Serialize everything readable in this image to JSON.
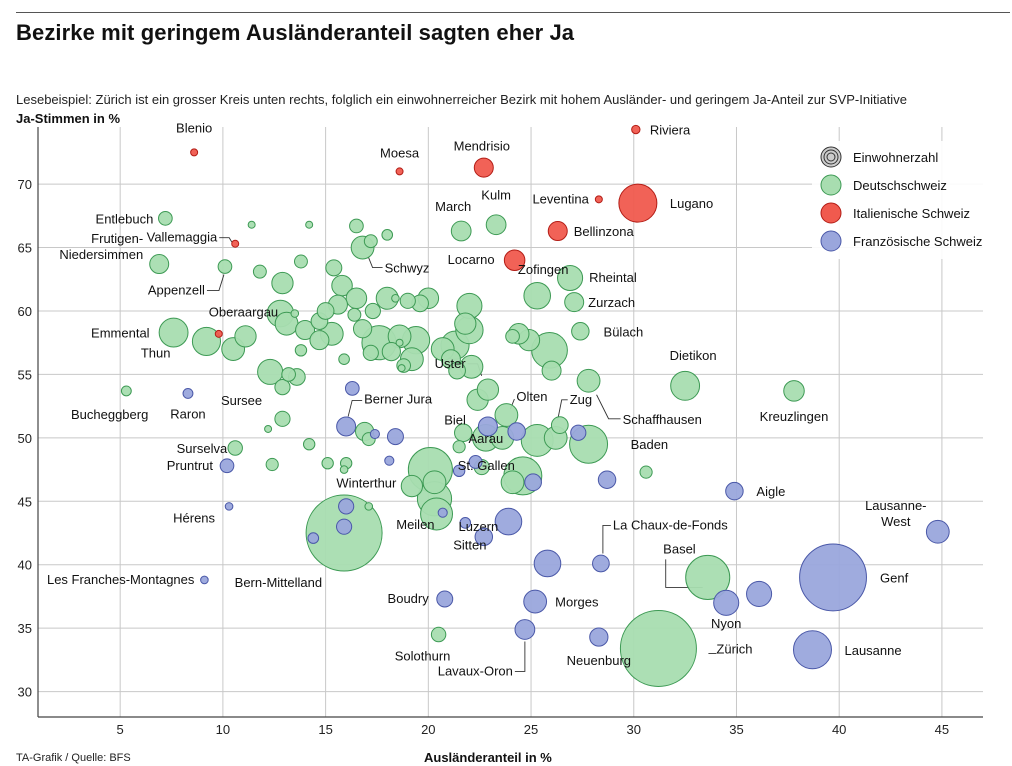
{
  "chart_data": {
    "type": "scatter",
    "title": "Bezirke mit geringem Ausländeranteil sagten eher Ja",
    "subtitle": "Lesebeispiel: Zürich ist ein grosser Kreis unten rechts, folglich ein einwohnerreicher Bezirk mit hohem Ausländer- und geringem Ja-Anteil zur SVP-Initiative",
    "ylabel": "Ja-Stimmen in %",
    "xlabel": "Ausländeranteil in %",
    "source": "TA-Grafik / Quelle: BFS",
    "xlim": [
      1,
      47
    ],
    "ylim": [
      28,
      74.5
    ],
    "xticks": [
      "5",
      "10",
      "15",
      "20",
      "25",
      "30",
      "35",
      "40",
      "45"
    ],
    "yticks": [
      "30",
      "35",
      "40",
      "45",
      "50",
      "55",
      "60",
      "65",
      "70"
    ],
    "colors": {
      "deutsch": "#a8ddb0",
      "deutsch_stroke": "#3d9a54",
      "italienisch": "#f05a4e",
      "italienisch_stroke": "#b31d16",
      "franz": "#9aa6dc",
      "franz_stroke": "#4a58a8",
      "grid": "#c8c8c8",
      "axis": "#444444"
    },
    "legend": {
      "size_label": "Einwohnerzahl",
      "entries": [
        {
          "name": "Deutschschweiz",
          "group": "deutsch"
        },
        {
          "name": "Italienische Schweiz",
          "group": "italienisch"
        },
        {
          "name": "Französische Schweiz",
          "group": "franz"
        }
      ]
    },
    "points": [
      {
        "x": 31.2,
        "y": 33.4,
        "s": 1.0,
        "g": "deutsch",
        "label": "Zürich"
      },
      {
        "x": 15.9,
        "y": 42.5,
        "s": 1.0,
        "g": "deutsch",
        "label": "Bern-Mittelland"
      },
      {
        "x": 33.6,
        "y": 39.0,
        "s": 0.58,
        "g": "deutsch",
        "label": "Basel"
      },
      {
        "x": 20.4,
        "y": 44.0,
        "s": 0.42,
        "g": "deutsch",
        "label": "Meilen"
      },
      {
        "x": 20.1,
        "y": 47.5,
        "s": 0.58,
        "g": "deutsch",
        "label": "Winterthur"
      },
      {
        "x": 24.6,
        "y": 47.0,
        "s": 0.5,
        "g": "deutsch",
        "label": "St. Gallen"
      },
      {
        "x": 20.3,
        "y": 45.2,
        "s": 0.45,
        "g": "deutsch",
        "label": "Luzern"
      },
      {
        "x": 22.8,
        "y": 50.0,
        "s": 0.35,
        "g": "deutsch",
        "label": "Aarau"
      },
      {
        "x": 27.8,
        "y": 49.5,
        "s": 0.5,
        "g": "deutsch",
        "label": "Baden"
      },
      {
        "x": 25.3,
        "y": 49.8,
        "s": 0.42,
        "g": "deutsch"
      },
      {
        "x": 25.9,
        "y": 56.9,
        "s": 0.47,
        "g": "deutsch",
        "label": "Bülach"
      },
      {
        "x": 32.5,
        "y": 54.1,
        "s": 0.38,
        "g": "deutsch",
        "label": "Dietikon"
      },
      {
        "x": 7.6,
        "y": 58.3,
        "s": 0.38,
        "g": "deutsch",
        "label": "Emmental"
      },
      {
        "x": 9.2,
        "y": 57.6,
        "s": 0.37,
        "g": "deutsch",
        "label": "Thun"
      },
      {
        "x": 17.6,
        "y": 57.5,
        "s": 0.45,
        "g": "deutsch"
      },
      {
        "x": 21.3,
        "y": 57.3,
        "s": 0.37,
        "g": "deutsch"
      },
      {
        "x": 22.0,
        "y": 58.5,
        "s": 0.36,
        "g": "deutsch"
      },
      {
        "x": 12.8,
        "y": 59.8,
        "s": 0.35,
        "g": "deutsch"
      },
      {
        "x": 12.3,
        "y": 55.2,
        "s": 0.33,
        "g": "deutsch",
        "label": "Sursee"
      },
      {
        "x": 25.3,
        "y": 61.2,
        "s": 0.35,
        "g": "deutsch",
        "label": "Zofingen"
      },
      {
        "x": 26.9,
        "y": 62.6,
        "s": 0.33,
        "g": "deutsch",
        "label": "Rheintal"
      },
      {
        "x": 22.0,
        "y": 60.4,
        "s": 0.33,
        "g": "deutsch"
      },
      {
        "x": 27.8,
        "y": 54.5,
        "s": 0.3,
        "g": "deutsch",
        "label": "Schaffhausen"
      },
      {
        "x": 37.8,
        "y": 53.7,
        "s": 0.27,
        "g": "deutsch",
        "label": "Kreuzlingen"
      },
      {
        "x": 23.8,
        "y": 51.8,
        "s": 0.3,
        "g": "deutsch",
        "label": "Olten"
      },
      {
        "x": 22.4,
        "y": 53.0,
        "s": 0.28,
        "g": "deutsch",
        "label": "Uster"
      },
      {
        "x": 22.9,
        "y": 53.8,
        "s": 0.28,
        "g": "deutsch"
      },
      {
        "x": 26.2,
        "y": 50.0,
        "s": 0.3,
        "g": "deutsch",
        "label": "Zug"
      },
      {
        "x": 19.2,
        "y": 46.2,
        "s": 0.28,
        "g": "deutsch"
      },
      {
        "x": 16.8,
        "y": 65.0,
        "s": 0.3,
        "g": "deutsch",
        "label": "Schwyz"
      },
      {
        "x": 21.6,
        "y": 66.3,
        "s": 0.26,
        "g": "deutsch",
        "label": "March"
      },
      {
        "x": 23.3,
        "y": 66.8,
        "s": 0.26,
        "g": "deutsch",
        "label": "Kulm"
      },
      {
        "x": 27.1,
        "y": 60.7,
        "s": 0.25,
        "g": "deutsch",
        "label": "Zurzach"
      },
      {
        "x": 11.1,
        "y": 58.0,
        "s": 0.28,
        "g": "deutsch",
        "label": "Oberaargau"
      },
      {
        "x": 10.5,
        "y": 57.0,
        "s": 0.3,
        "g": "deutsch"
      },
      {
        "x": 6.9,
        "y": 63.7,
        "s": 0.25,
        "g": "deutsch",
        "label": "Frutigen-\nNiedersimmen"
      },
      {
        "x": 10.1,
        "y": 63.5,
        "s": 0.18,
        "g": "deutsch",
        "label": "Appenzell"
      },
      {
        "x": 7.2,
        "y": 67.3,
        "s": 0.18,
        "g": "deutsch",
        "label": "Entlebuch"
      },
      {
        "x": 5.3,
        "y": 53.7,
        "s": 0.13,
        "g": "deutsch",
        "label": "Bucheggberg"
      },
      {
        "x": 10.6,
        "y": 49.2,
        "s": 0.19,
        "g": "deutsch",
        "label": "Surselva"
      },
      {
        "x": 20.5,
        "y": 34.5,
        "s": 0.19,
        "g": "deutsch",
        "label": "Solothurn"
      },
      {
        "x": 13.1,
        "y": 59.0,
        "s": 0.3,
        "g": "deutsch"
      },
      {
        "x": 14.0,
        "y": 58.5,
        "s": 0.25,
        "g": "deutsch"
      },
      {
        "x": 14.7,
        "y": 59.2,
        "s": 0.22,
        "g": "deutsch"
      },
      {
        "x": 15.0,
        "y": 60.0,
        "s": 0.22,
        "g": "deutsch"
      },
      {
        "x": 15.6,
        "y": 60.5,
        "s": 0.25,
        "g": "deutsch"
      },
      {
        "x": 15.8,
        "y": 62.0,
        "s": 0.27,
        "g": "deutsch"
      },
      {
        "x": 16.5,
        "y": 61.0,
        "s": 0.27,
        "g": "deutsch"
      },
      {
        "x": 17.3,
        "y": 60.0,
        "s": 0.2,
        "g": "deutsch"
      },
      {
        "x": 18.0,
        "y": 61.0,
        "s": 0.29,
        "g": "deutsch"
      },
      {
        "x": 18.6,
        "y": 58.0,
        "s": 0.3,
        "g": "deutsch"
      },
      {
        "x": 19.4,
        "y": 57.7,
        "s": 0.36,
        "g": "deutsch"
      },
      {
        "x": 19.2,
        "y": 56.2,
        "s": 0.3,
        "g": "deutsch"
      },
      {
        "x": 18.2,
        "y": 56.8,
        "s": 0.24,
        "g": "deutsch"
      },
      {
        "x": 17.2,
        "y": 56.7,
        "s": 0.2,
        "g": "deutsch"
      },
      {
        "x": 16.8,
        "y": 58.6,
        "s": 0.24,
        "g": "deutsch"
      },
      {
        "x": 15.3,
        "y": 58.2,
        "s": 0.3,
        "g": "deutsch"
      },
      {
        "x": 14.7,
        "y": 57.7,
        "s": 0.25,
        "g": "deutsch"
      },
      {
        "x": 16.4,
        "y": 59.7,
        "s": 0.17,
        "g": "deutsch"
      },
      {
        "x": 13.5,
        "y": 59.8,
        "s": 0.1,
        "g": "deutsch"
      },
      {
        "x": 12.9,
        "y": 62.2,
        "s": 0.28,
        "g": "deutsch"
      },
      {
        "x": 13.8,
        "y": 63.9,
        "s": 0.17,
        "g": "deutsch"
      },
      {
        "x": 11.8,
        "y": 63.1,
        "s": 0.17,
        "g": "deutsch"
      },
      {
        "x": 15.4,
        "y": 63.4,
        "s": 0.21,
        "g": "deutsch"
      },
      {
        "x": 17.2,
        "y": 65.5,
        "s": 0.17,
        "g": "deutsch"
      },
      {
        "x": 16.5,
        "y": 66.7,
        "s": 0.18,
        "g": "deutsch"
      },
      {
        "x": 18.0,
        "y": 66.0,
        "s": 0.14,
        "g": "deutsch"
      },
      {
        "x": 14.2,
        "y": 66.8,
        "s": 0.08,
        "g": "deutsch"
      },
      {
        "x": 11.4,
        "y": 66.8,
        "s": 0.06,
        "g": "deutsch"
      },
      {
        "x": 18.4,
        "y": 61.0,
        "s": 0.1,
        "g": "deutsch"
      },
      {
        "x": 19.0,
        "y": 60.8,
        "s": 0.2,
        "g": "deutsch"
      },
      {
        "x": 19.6,
        "y": 60.6,
        "s": 0.22,
        "g": "deutsch"
      },
      {
        "x": 20.0,
        "y": 61.0,
        "s": 0.27,
        "g": "deutsch"
      },
      {
        "x": 21.8,
        "y": 59.0,
        "s": 0.28,
        "g": "deutsch"
      },
      {
        "x": 20.7,
        "y": 57.0,
        "s": 0.3,
        "g": "deutsch"
      },
      {
        "x": 21.1,
        "y": 56.2,
        "s": 0.25,
        "g": "deutsch"
      },
      {
        "x": 22.1,
        "y": 55.6,
        "s": 0.3,
        "g": "deutsch"
      },
      {
        "x": 21.4,
        "y": 55.3,
        "s": 0.22,
        "g": "deutsch"
      },
      {
        "x": 24.1,
        "y": 58.0,
        "s": 0.18,
        "g": "deutsch"
      },
      {
        "x": 24.4,
        "y": 58.2,
        "s": 0.27,
        "g": "deutsch"
      },
      {
        "x": 24.9,
        "y": 57.7,
        "s": 0.28,
        "g": "deutsch"
      },
      {
        "x": 26.0,
        "y": 55.3,
        "s": 0.25,
        "g": "deutsch"
      },
      {
        "x": 27.4,
        "y": 58.4,
        "s": 0.23,
        "g": "deutsch"
      },
      {
        "x": 18.8,
        "y": 55.7,
        "s": 0.18,
        "g": "deutsch"
      },
      {
        "x": 13.2,
        "y": 55.0,
        "s": 0.18,
        "g": "deutsch"
      },
      {
        "x": 12.9,
        "y": 54.0,
        "s": 0.2,
        "g": "deutsch"
      },
      {
        "x": 13.6,
        "y": 54.8,
        "s": 0.22,
        "g": "deutsch"
      },
      {
        "x": 13.8,
        "y": 56.9,
        "s": 0.15,
        "g": "deutsch"
      },
      {
        "x": 15.9,
        "y": 56.2,
        "s": 0.14,
        "g": "deutsch"
      },
      {
        "x": 16.9,
        "y": 50.5,
        "s": 0.24,
        "g": "deutsch"
      },
      {
        "x": 17.1,
        "y": 49.9,
        "s": 0.17,
        "g": "deutsch"
      },
      {
        "x": 12.9,
        "y": 51.5,
        "s": 0.2,
        "g": "deutsch"
      },
      {
        "x": 14.2,
        "y": 49.5,
        "s": 0.15,
        "g": "deutsch"
      },
      {
        "x": 12.4,
        "y": 47.9,
        "s": 0.16,
        "g": "deutsch"
      },
      {
        "x": 12.2,
        "y": 50.7,
        "s": 0.08,
        "g": "deutsch"
      },
      {
        "x": 15.1,
        "y": 48.0,
        "s": 0.15,
        "g": "deutsch"
      },
      {
        "x": 16.0,
        "y": 48.0,
        "s": 0.15,
        "g": "deutsch"
      },
      {
        "x": 15.9,
        "y": 47.5,
        "s": 0.1,
        "g": "deutsch"
      },
      {
        "x": 17.1,
        "y": 44.6,
        "s": 0.1,
        "g": "deutsch"
      },
      {
        "x": 30.6,
        "y": 47.3,
        "s": 0.16,
        "g": "deutsch"
      },
      {
        "x": 21.5,
        "y": 49.3,
        "s": 0.16,
        "g": "deutsch"
      },
      {
        "x": 21.7,
        "y": 50.4,
        "s": 0.23,
        "g": "deutsch"
      },
      {
        "x": 23.6,
        "y": 50.0,
        "s": 0.3,
        "g": "deutsch"
      },
      {
        "x": 20.3,
        "y": 46.5,
        "s": 0.3,
        "g": "deutsch"
      },
      {
        "x": 22.6,
        "y": 47.7,
        "s": 0.2,
        "g": "deutsch"
      },
      {
        "x": 24.1,
        "y": 46.5,
        "s": 0.3,
        "g": "deutsch"
      },
      {
        "x": 26.4,
        "y": 51.0,
        "s": 0.22,
        "g": "deutsch"
      },
      {
        "x": 18.7,
        "y": 55.5,
        "s": 0.08,
        "g": "deutsch"
      },
      {
        "x": 18.6,
        "y": 57.5,
        "s": 0.05,
        "g": "deutsch"
      },
      {
        "x": 30.2,
        "y": 68.5,
        "s": 0.5,
        "g": "italienisch",
        "label": "Lugano"
      },
      {
        "x": 22.7,
        "y": 71.3,
        "s": 0.25,
        "g": "italienisch",
        "label": "Mendrisio"
      },
      {
        "x": 26.3,
        "y": 66.3,
        "s": 0.25,
        "g": "italienisch",
        "label": "Bellinzona"
      },
      {
        "x": 24.2,
        "y": 64.0,
        "s": 0.27,
        "g": "italienisch",
        "label": "Locarno"
      },
      {
        "x": 30.1,
        "y": 74.3,
        "s": 0.11,
        "g": "italienisch",
        "label": "Riviera"
      },
      {
        "x": 28.3,
        "y": 68.8,
        "s": 0.09,
        "g": "italienisch",
        "label": "Leventina"
      },
      {
        "x": 18.6,
        "y": 71.0,
        "s": 0.08,
        "g": "italienisch",
        "label": "Moesa"
      },
      {
        "x": 8.6,
        "y": 72.5,
        "s": 0.07,
        "g": "italienisch",
        "label": "Blenio"
      },
      {
        "x": 10.6,
        "y": 65.3,
        "s": 0.08,
        "g": "italienisch",
        "label": "Vallemaggia"
      },
      {
        "x": 9.8,
        "y": 58.2,
        "s": 0.07,
        "g": "italienisch"
      },
      {
        "x": 39.7,
        "y": 39.0,
        "s": 0.88,
        "g": "franz",
        "label": "Genf"
      },
      {
        "x": 38.7,
        "y": 33.3,
        "s": 0.5,
        "g": "franz",
        "label": "Lausanne"
      },
      {
        "x": 44.8,
        "y": 42.6,
        "s": 0.3,
        "g": "franz",
        "label": "Lausanne-\nWest"
      },
      {
        "x": 36.1,
        "y": 37.7,
        "s": 0.33,
        "g": "franz"
      },
      {
        "x": 34.5,
        "y": 37.0,
        "s": 0.33,
        "g": "franz",
        "label": "Nyon"
      },
      {
        "x": 34.9,
        "y": 45.8,
        "s": 0.23,
        "g": "franz",
        "label": "Aigle"
      },
      {
        "x": 28.4,
        "y": 40.1,
        "s": 0.22,
        "g": "franz",
        "label": "La Chaux-de-Fonds"
      },
      {
        "x": 25.8,
        "y": 40.1,
        "s": 0.35,
        "g": "franz"
      },
      {
        "x": 23.9,
        "y": 43.4,
        "s": 0.35,
        "g": "franz",
        "label": "Sitten"
      },
      {
        "x": 25.2,
        "y": 37.1,
        "s": 0.3,
        "g": "franz",
        "label": "Morges"
      },
      {
        "x": 24.7,
        "y": 34.9,
        "s": 0.26,
        "g": "franz",
        "label": "Lavaux-Oron"
      },
      {
        "x": 28.3,
        "y": 34.3,
        "s": 0.24,
        "g": "franz",
        "label": "Neuenburg"
      },
      {
        "x": 28.7,
        "y": 46.7,
        "s": 0.23,
        "g": "franz"
      },
      {
        "x": 25.1,
        "y": 46.5,
        "s": 0.22,
        "g": "franz"
      },
      {
        "x": 22.7,
        "y": 42.2,
        "s": 0.23,
        "g": "franz"
      },
      {
        "x": 21.8,
        "y": 43.3,
        "s": 0.14,
        "g": "franz"
      },
      {
        "x": 21.5,
        "y": 47.4,
        "s": 0.15,
        "g": "franz"
      },
      {
        "x": 20.7,
        "y": 44.1,
        "s": 0.12,
        "g": "franz"
      },
      {
        "x": 22.3,
        "y": 48.1,
        "s": 0.17,
        "g": "franz"
      },
      {
        "x": 20.8,
        "y": 37.3,
        "s": 0.21,
        "g": "franz",
        "label": "Boudry"
      },
      {
        "x": 16.0,
        "y": 50.9,
        "s": 0.25,
        "g": "franz",
        "label": "Berner Jura"
      },
      {
        "x": 16.3,
        "y": 53.9,
        "s": 0.18,
        "g": "franz"
      },
      {
        "x": 18.4,
        "y": 50.1,
        "s": 0.21,
        "g": "franz"
      },
      {
        "x": 17.4,
        "y": 50.3,
        "s": 0.12,
        "g": "franz"
      },
      {
        "x": 22.9,
        "y": 50.9,
        "s": 0.25,
        "g": "franz",
        "label": "Biel"
      },
      {
        "x": 24.3,
        "y": 50.5,
        "s": 0.23,
        "g": "franz"
      },
      {
        "x": 27.3,
        "y": 50.4,
        "s": 0.2,
        "g": "franz"
      },
      {
        "x": 18.1,
        "y": 48.2,
        "s": 0.12,
        "g": "franz"
      },
      {
        "x": 16.0,
        "y": 44.6,
        "s": 0.2,
        "g": "franz"
      },
      {
        "x": 15.9,
        "y": 43.0,
        "s": 0.2,
        "g": "franz"
      },
      {
        "x": 14.4,
        "y": 42.1,
        "s": 0.14,
        "g": "franz"
      },
      {
        "x": 10.2,
        "y": 47.8,
        "s": 0.18,
        "g": "franz",
        "label": "Pruntrut"
      },
      {
        "x": 8.3,
        "y": 53.5,
        "s": 0.13,
        "g": "franz",
        "label": "Raron"
      },
      {
        "x": 10.3,
        "y": 44.6,
        "s": 0.1,
        "g": "franz",
        "label": "Hérens"
      },
      {
        "x": 9.1,
        "y": 38.8,
        "s": 0.1,
        "g": "franz",
        "label": "Les Franches-Montagnes"
      }
    ]
  }
}
